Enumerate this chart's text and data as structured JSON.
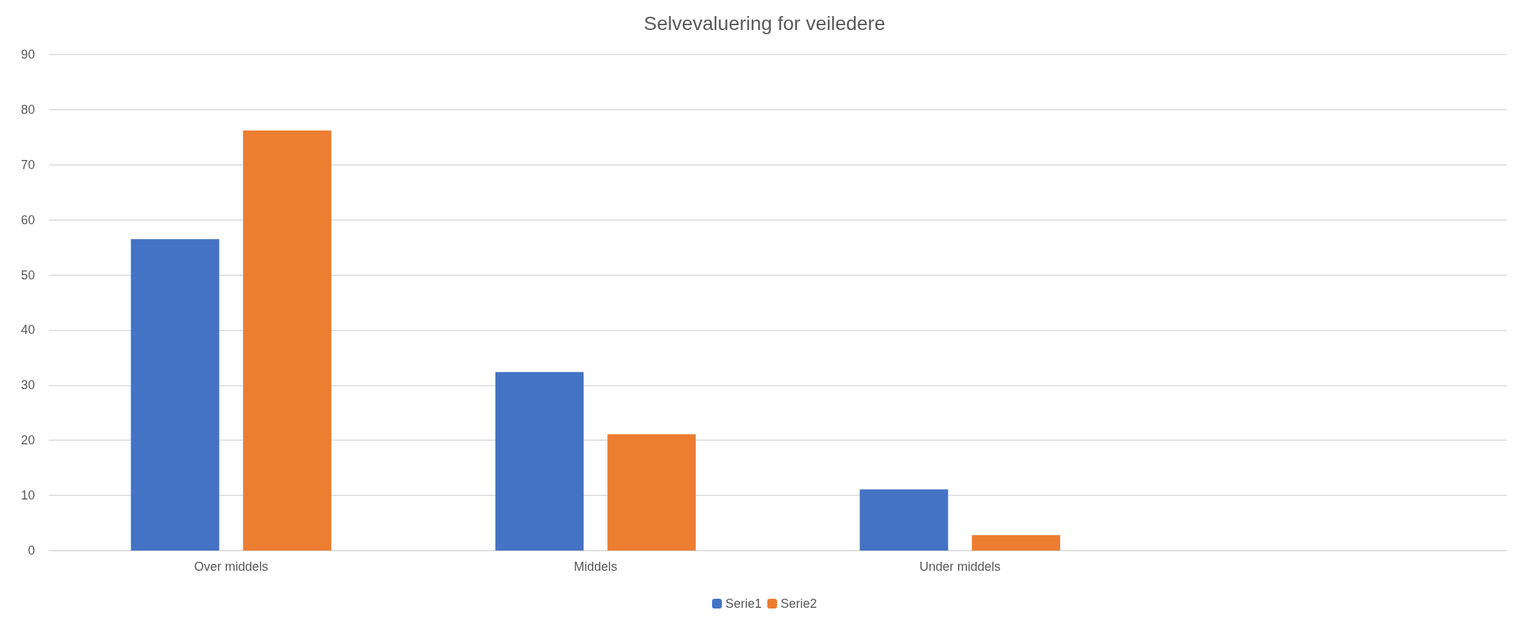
{
  "chart_data": {
    "type": "bar",
    "title": "Selvevaluering for veiledere",
    "categories": [
      "Over middels",
      "Middels",
      "Under middels",
      null
    ],
    "series": [
      {
        "name": "Serie1",
        "color": "#4472c4",
        "values": [
          56.5,
          32.4,
          11.1,
          null
        ]
      },
      {
        "name": "Serie2",
        "color": "#ed7d31",
        "values": [
          76.2,
          21.1,
          2.8,
          null
        ]
      }
    ],
    "ylim": [
      0,
      90
    ],
    "yticks": [
      0,
      10,
      20,
      30,
      40,
      50,
      60,
      70,
      80,
      90
    ],
    "grid": "y",
    "legend": "bottom"
  }
}
